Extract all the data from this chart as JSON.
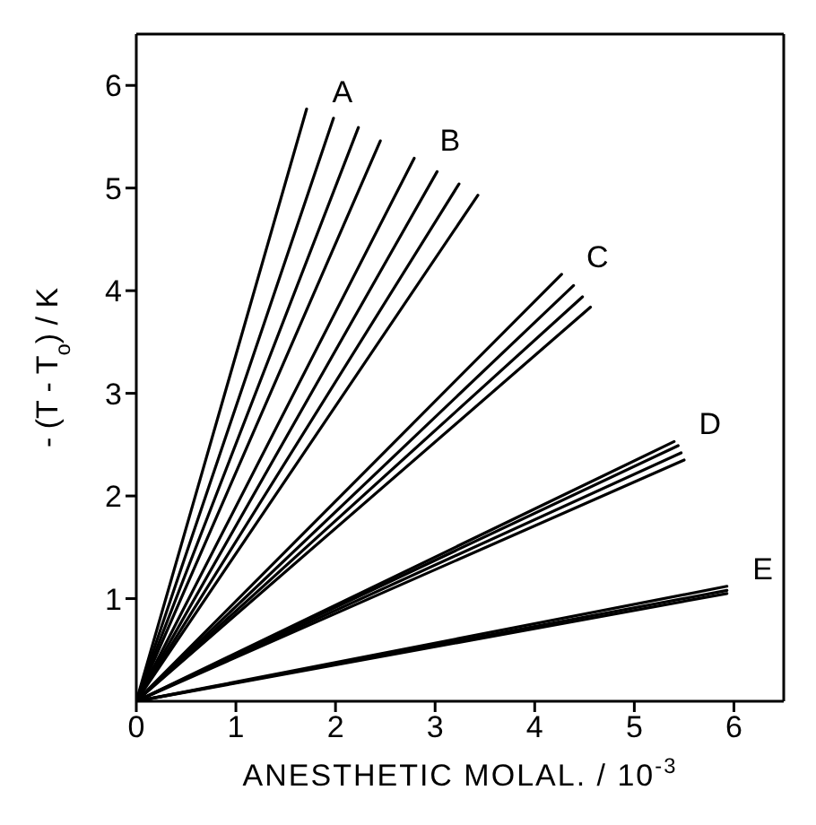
{
  "chart_data": {
    "type": "line",
    "xlabel": "ANESTHETIC MOLAL. / 10$^{-3}$",
    "ylabel": "- (T - T$_{o}$) / K",
    "xlim": [
      0,
      6.5
    ],
    "ylim": [
      0,
      6.5
    ],
    "xticks": [
      0,
      1,
      2,
      3,
      4,
      5,
      6
    ],
    "yticks": [
      1,
      2,
      3,
      4,
      5,
      6
    ],
    "marker": "none",
    "line_style": "solid",
    "series": [
      {
        "name": "A",
        "color": "#000000",
        "x": [
          0,
          1.71
        ],
        "values": [
          0,
          5.77
        ]
      },
      {
        "color": "#000000",
        "x": [
          0,
          1.98
        ],
        "values": [
          0,
          5.68
        ]
      },
      {
        "color": "#000000",
        "x": [
          0,
          2.23
        ],
        "values": [
          0,
          5.59
        ]
      },
      {
        "color": "#000000",
        "x": [
          0,
          2.45
        ],
        "values": [
          0,
          5.46
        ]
      },
      {
        "name": "B",
        "color": "#000000",
        "x": [
          0,
          2.79
        ],
        "values": [
          0,
          5.29
        ]
      },
      {
        "color": "#000000",
        "x": [
          0,
          3.02
        ],
        "values": [
          0,
          5.16
        ]
      },
      {
        "color": "#000000",
        "x": [
          0,
          3.24
        ],
        "values": [
          0,
          5.04
        ]
      },
      {
        "color": "#000000",
        "x": [
          0,
          3.43
        ],
        "values": [
          0,
          4.93
        ]
      },
      {
        "name": "C",
        "color": "#000000",
        "x": [
          0,
          4.27
        ],
        "values": [
          0,
          4.16
        ]
      },
      {
        "color": "#000000",
        "x": [
          0,
          4.39
        ],
        "values": [
          0,
          4.05
        ]
      },
      {
        "color": "#000000",
        "x": [
          0,
          4.48
        ],
        "values": [
          0,
          3.94
        ]
      },
      {
        "color": "#000000",
        "x": [
          0,
          4.56
        ],
        "values": [
          0,
          3.84
        ]
      },
      {
        "name": "D",
        "color": "#000000",
        "x": [
          0,
          5.4
        ],
        "values": [
          0,
          2.53
        ]
      },
      {
        "color": "#000000",
        "x": [
          0,
          5.44
        ],
        "values": [
          0,
          2.49
        ]
      },
      {
        "color": "#000000",
        "x": [
          0,
          5.47
        ],
        "values": [
          0,
          2.42
        ]
      },
      {
        "color": "#000000",
        "x": [
          0,
          5.5
        ],
        "values": [
          0,
          2.35
        ]
      },
      {
        "name": "E",
        "color": "#000000",
        "x": [
          0,
          5.93
        ],
        "values": [
          0,
          1.12
        ]
      },
      {
        "color": "#000000",
        "x": [
          0,
          5.93
        ],
        "values": [
          0,
          1.08
        ]
      },
      {
        "color": "#000000",
        "x": [
          0,
          5.93
        ],
        "values": [
          0,
          1.05
        ]
      }
    ]
  }
}
